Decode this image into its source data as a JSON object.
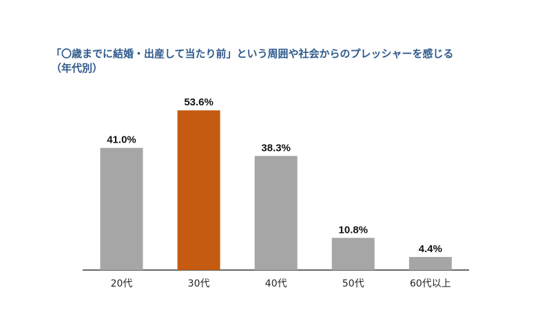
{
  "chart_data": {
    "type": "bar",
    "title": "「〇歳までに結婚・出産して当たり前」という周囲や社会からのプレッシャーを感じる\n（年代別）",
    "categories": [
      "20代",
      "30代",
      "40代",
      "50代",
      "60代以上"
    ],
    "values": [
      41.0,
      53.6,
      38.3,
      10.8,
      4.4
    ],
    "data_labels": [
      "41.0%",
      "53.6%",
      "38.3%",
      "10.8%",
      "4.4%"
    ],
    "xlabel": "",
    "ylabel": "",
    "ylim": [
      0,
      60
    ],
    "grid": false,
    "legend": "none",
    "colors": {
      "default_bar": "#a6a6a6",
      "highlight_bar": "#c55a11",
      "title": "#2f5a8c",
      "axis": "#333333"
    },
    "highlight_index": 1
  }
}
